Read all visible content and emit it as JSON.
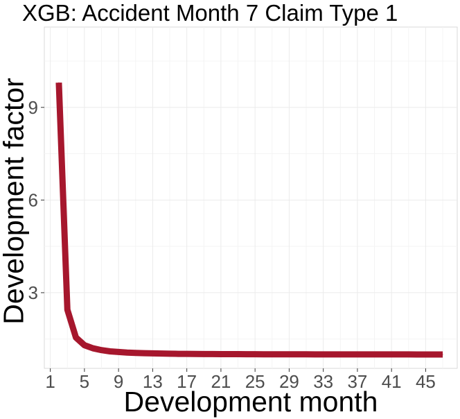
{
  "chart_data": {
    "type": "line",
    "title": "XGB: Accident Month 7 Claim Type 1",
    "xlabel": "Development month",
    "ylabel": "Development factor",
    "x_ticks": [
      1,
      5,
      9,
      13,
      17,
      21,
      25,
      29,
      33,
      37,
      41,
      45
    ],
    "y_ticks": [
      3,
      6,
      9
    ],
    "xlim": [
      0.3,
      48.7
    ],
    "ylim": [
      0.55,
      11.6
    ],
    "grid": true,
    "series": [
      {
        "color": "#a6172d",
        "x": [
          2,
          3,
          4,
          5,
          6,
          7,
          8,
          9,
          10,
          11,
          12,
          13,
          14,
          15,
          16,
          17,
          18,
          19,
          20,
          21,
          22,
          23,
          24,
          25,
          26,
          27,
          28,
          29,
          30,
          31,
          32,
          33,
          34,
          35,
          36,
          37,
          38,
          39,
          40,
          41,
          42,
          43,
          44,
          45,
          46,
          47
        ],
        "y": [
          9.8,
          2.45,
          1.55,
          1.3,
          1.2,
          1.14,
          1.1,
          1.08,
          1.06,
          1.05,
          1.04,
          1.035,
          1.03,
          1.025,
          1.02,
          1.018,
          1.015,
          1.013,
          1.012,
          1.01,
          1.01,
          1.009,
          1.008,
          1.007,
          1.006,
          1.006,
          1.005,
          1.005,
          1.004,
          1.004,
          1.003,
          1.003,
          1.003,
          1.002,
          1.002,
          1.002,
          1.002,
          1.001,
          1.001,
          1.001,
          1.001,
          1.001,
          1.0,
          1.0,
          1.0,
          1.0
        ]
      }
    ]
  }
}
